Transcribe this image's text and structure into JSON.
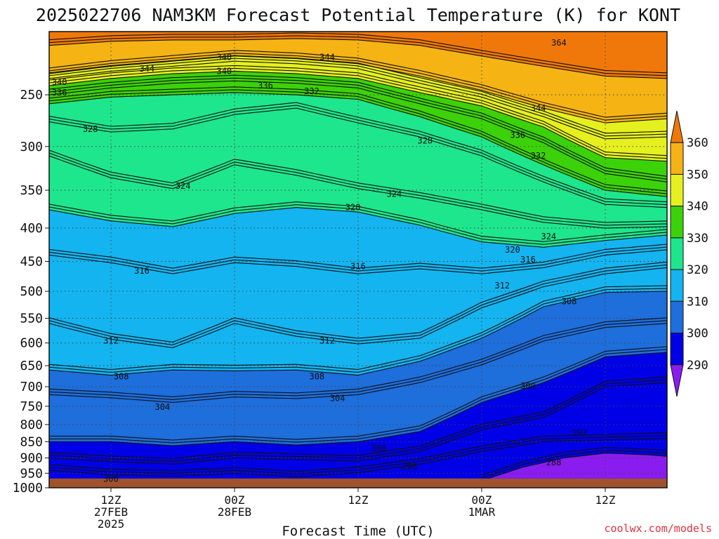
{
  "title": "2025022706 NAM3KM Forecast Potential Temperature (K) for KONT",
  "xlabel": "Forecast Time (UTC)",
  "credit": "coolwx.com/models",
  "chart_data": {
    "type": "heatmap",
    "title": "2025022706 NAM3KM Forecast Potential Temperature (K) for KONT",
    "xlabel": "Forecast Time (UTC)",
    "ylabel": "",
    "x_range_hours": [
      0,
      60
    ],
    "y_range": [
      1000,
      200
    ],
    "y_scale": "log",
    "y_ticks": [
      250,
      300,
      350,
      400,
      450,
      500,
      550,
      600,
      650,
      700,
      750,
      800,
      850,
      900,
      950,
      1000
    ],
    "x_ticks": [
      {
        "hour": 6,
        "lines": [
          "12Z",
          "27FEB",
          "2025"
        ]
      },
      {
        "hour": 18,
        "lines": [
          "00Z",
          "28FEB"
        ]
      },
      {
        "hour": 30,
        "lines": [
          "12Z"
        ]
      },
      {
        "hour": 42,
        "lines": [
          "00Z",
          "1MAR"
        ]
      },
      {
        "hour": 54,
        "lines": [
          "12Z"
        ]
      }
    ],
    "colorbar": {
      "levels": [
        290,
        300,
        310,
        320,
        330,
        340,
        350,
        360
      ],
      "colors": [
        "#8a1cf0",
        "#0000e6",
        "#1e6edc",
        "#14b4f0",
        "#1ee68c",
        "#3cd20a",
        "#e6f01e",
        "#f5b414",
        "#f0780a"
      ]
    },
    "surface_color": "#a0522d",
    "grid": true,
    "series": [
      {
        "name": "364",
        "values": [
          [
            0,
            210
          ],
          [
            6,
            207
          ],
          [
            12,
            206
          ],
          [
            18,
            206
          ],
          [
            24,
            205
          ],
          [
            30,
            206
          ],
          [
            36,
            210
          ],
          [
            42,
            218
          ],
          [
            48,
            226
          ],
          [
            54,
            234
          ],
          [
            60,
            236
          ]
        ]
      },
      {
        "name": "348",
        "values": [
          [
            0,
            232
          ],
          [
            6,
            226
          ],
          [
            12,
            222
          ],
          [
            18,
            218
          ],
          [
            24,
            220
          ],
          [
            30,
            224
          ],
          [
            36,
            234
          ],
          [
            42,
            246
          ],
          [
            48,
            262
          ],
          [
            54,
            276
          ],
          [
            60,
            272
          ]
        ]
      },
      {
        "name": "344",
        "values": [
          [
            0,
            236
          ],
          [
            6,
            230
          ],
          [
            12,
            226
          ],
          [
            18,
            222
          ],
          [
            24,
            224
          ],
          [
            30,
            228
          ],
          [
            36,
            240
          ],
          [
            42,
            252
          ],
          [
            48,
            270
          ],
          [
            54,
            292
          ],
          [
            60,
            290
          ]
        ]
      },
      {
        "name": "340",
        "values": [
          [
            0,
            242
          ],
          [
            6,
            236
          ],
          [
            12,
            232
          ],
          [
            18,
            230
          ],
          [
            24,
            232
          ],
          [
            30,
            236
          ],
          [
            36,
            248
          ],
          [
            42,
            260
          ],
          [
            48,
            280
          ],
          [
            54,
            312
          ],
          [
            60,
            316
          ]
        ]
      },
      {
        "name": "336",
        "values": [
          [
            0,
            250
          ],
          [
            6,
            244
          ],
          [
            12,
            240
          ],
          [
            18,
            238
          ],
          [
            24,
            240
          ],
          [
            30,
            244
          ],
          [
            36,
            258
          ],
          [
            42,
            272
          ],
          [
            48,
            296
          ],
          [
            54,
            330
          ],
          [
            60,
            340
          ]
        ]
      },
      {
        "name": "332",
        "values": [
          [
            0,
            258
          ],
          [
            6,
            252
          ],
          [
            12,
            250
          ],
          [
            18,
            248
          ],
          [
            24,
            250
          ],
          [
            30,
            254
          ],
          [
            36,
            270
          ],
          [
            42,
            290
          ],
          [
            48,
            320
          ],
          [
            54,
            350
          ],
          [
            60,
            358
          ]
        ]
      },
      {
        "name": "328",
        "values": [
          [
            0,
            275
          ],
          [
            6,
            285
          ],
          [
            12,
            282
          ],
          [
            18,
            268
          ],
          [
            24,
            262
          ],
          [
            30,
            276
          ],
          [
            36,
            290
          ],
          [
            42,
            310
          ],
          [
            48,
            340
          ],
          [
            54,
            368
          ],
          [
            60,
            372
          ]
        ]
      },
      {
        "name": "324",
        "values": [
          [
            0,
            310
          ],
          [
            6,
            335
          ],
          [
            12,
            348
          ],
          [
            18,
            320
          ],
          [
            24,
            332
          ],
          [
            30,
            348
          ],
          [
            36,
            360
          ],
          [
            42,
            375
          ],
          [
            48,
            392
          ],
          [
            54,
            400
          ],
          [
            60,
            398
          ]
        ]
      },
      {
        "name": "320",
        "values": [
          [
            0,
            375
          ],
          [
            6,
            390
          ],
          [
            12,
            398
          ],
          [
            18,
            380
          ],
          [
            24,
            372
          ],
          [
            30,
            378
          ],
          [
            36,
            396
          ],
          [
            42,
            420
          ],
          [
            48,
            428
          ],
          [
            54,
            418
          ],
          [
            60,
            410
          ]
        ]
      },
      {
        "name": "316",
        "values": [
          [
            0,
            440
          ],
          [
            6,
            452
          ],
          [
            12,
            470
          ],
          [
            18,
            452
          ],
          [
            24,
            458
          ],
          [
            30,
            470
          ],
          [
            36,
            462
          ],
          [
            42,
            470
          ],
          [
            48,
            460
          ],
          [
            54,
            440
          ],
          [
            60,
            432
          ]
        ]
      },
      {
        "name": "312",
        "values": [
          [
            0,
            560
          ],
          [
            6,
            592
          ],
          [
            12,
            610
          ],
          [
            18,
            560
          ],
          [
            24,
            586
          ],
          [
            30,
            602
          ],
          [
            36,
            590
          ],
          [
            42,
            530
          ],
          [
            48,
            492
          ],
          [
            54,
            470
          ],
          [
            60,
            460
          ]
        ]
      },
      {
        "name": "308",
        "values": [
          [
            0,
            660
          ],
          [
            6,
            672
          ],
          [
            12,
            660
          ],
          [
            18,
            662
          ],
          [
            24,
            660
          ],
          [
            30,
            672
          ],
          [
            36,
            640
          ],
          [
            42,
            590
          ],
          [
            48,
            528
          ],
          [
            54,
            502
          ],
          [
            60,
            500
          ]
        ]
      },
      {
        "name": "304",
        "values": [
          [
            0,
            720
          ],
          [
            6,
            728
          ],
          [
            12,
            740
          ],
          [
            18,
            726
          ],
          [
            24,
            730
          ],
          [
            30,
            720
          ],
          [
            36,
            690
          ],
          [
            42,
            648
          ],
          [
            48,
            596
          ],
          [
            54,
            568
          ],
          [
            60,
            560
          ]
        ]
      },
      {
        "name": "300",
        "values": [
          [
            0,
            850
          ],
          [
            6,
            850
          ],
          [
            12,
            862
          ],
          [
            18,
            850
          ],
          [
            24,
            860
          ],
          [
            30,
            850
          ],
          [
            36,
            820
          ],
          [
            42,
            740
          ],
          [
            48,
            690
          ],
          [
            54,
            630
          ],
          [
            60,
            620
          ]
        ]
      },
      {
        "name": "296",
        "values": [
          [
            0,
            900
          ],
          [
            6,
            912
          ],
          [
            12,
            920
          ],
          [
            18,
            900
          ],
          [
            24,
            905
          ],
          [
            30,
            910
          ],
          [
            36,
            880
          ],
          [
            42,
            815
          ],
          [
            48,
            780
          ],
          [
            54,
            700
          ],
          [
            60,
            690
          ]
        ]
      },
      {
        "name": "292",
        "values": [
          [
            0,
            940
          ],
          [
            6,
            955
          ],
          [
            12,
            960
          ],
          [
            18,
            950
          ],
          [
            24,
            962
          ],
          [
            30,
            948
          ],
          [
            36,
            920
          ],
          [
            42,
            880
          ],
          [
            48,
            850
          ],
          [
            54,
            845
          ],
          [
            60,
            840
          ]
        ]
      },
      {
        "name": "288",
        "values": [
          [
            42,
            975
          ],
          [
            46,
            930
          ],
          [
            50,
            900
          ],
          [
            54,
            885
          ],
          [
            58,
            890
          ],
          [
            60,
            895
          ]
        ]
      }
    ],
    "labels": [
      {
        "text": "364",
        "x": 49.5,
        "y": 208
      },
      {
        "text": "348",
        "x": 17,
        "y": 219
      },
      {
        "text": "344",
        "x": 9.5,
        "y": 228
      },
      {
        "text": "344",
        "x": 27,
        "y": 219
      },
      {
        "text": "340",
        "x": 1,
        "y": 239
      },
      {
        "text": "340",
        "x": 17,
        "y": 230
      },
      {
        "text": "336",
        "x": 1,
        "y": 248
      },
      {
        "text": "336",
        "x": 21,
        "y": 242
      },
      {
        "text": "332",
        "x": 25.5,
        "y": 247
      },
      {
        "text": "344",
        "x": 47.5,
        "y": 262
      },
      {
        "text": "336",
        "x": 45.5,
        "y": 288
      },
      {
        "text": "332",
        "x": 47.5,
        "y": 310
      },
      {
        "text": "328",
        "x": 4,
        "y": 282
      },
      {
        "text": "328",
        "x": 36.5,
        "y": 294
      },
      {
        "text": "324",
        "x": 13,
        "y": 345
      },
      {
        "text": "324",
        "x": 33.5,
        "y": 355
      },
      {
        "text": "324",
        "x": 48.5,
        "y": 412
      },
      {
        "text": "320",
        "x": 29.5,
        "y": 372
      },
      {
        "text": "320",
        "x": 45,
        "y": 432
      },
      {
        "text": "316",
        "x": 9,
        "y": 465
      },
      {
        "text": "316",
        "x": 30,
        "y": 458
      },
      {
        "text": "316",
        "x": 46.5,
        "y": 447
      },
      {
        "text": "312",
        "x": 6,
        "y": 595
      },
      {
        "text": "312",
        "x": 27,
        "y": 595
      },
      {
        "text": "312",
        "x": 44,
        "y": 490
      },
      {
        "text": "308",
        "x": 7,
        "y": 675
      },
      {
        "text": "308",
        "x": 26,
        "y": 675
      },
      {
        "text": "308",
        "x": 50.5,
        "y": 518
      },
      {
        "text": "304",
        "x": 11,
        "y": 752
      },
      {
        "text": "304",
        "x": 28,
        "y": 729
      },
      {
        "text": "300",
        "x": 32,
        "y": 871
      },
      {
        "text": "300",
        "x": 46.5,
        "y": 698
      },
      {
        "text": "296",
        "x": 35,
        "y": 928
      },
      {
        "text": "292",
        "x": 51.5,
        "y": 824
      },
      {
        "text": "288",
        "x": 49,
        "y": 915
      },
      {
        "text": "300",
        "x": 6,
        "y": 970
      }
    ]
  }
}
